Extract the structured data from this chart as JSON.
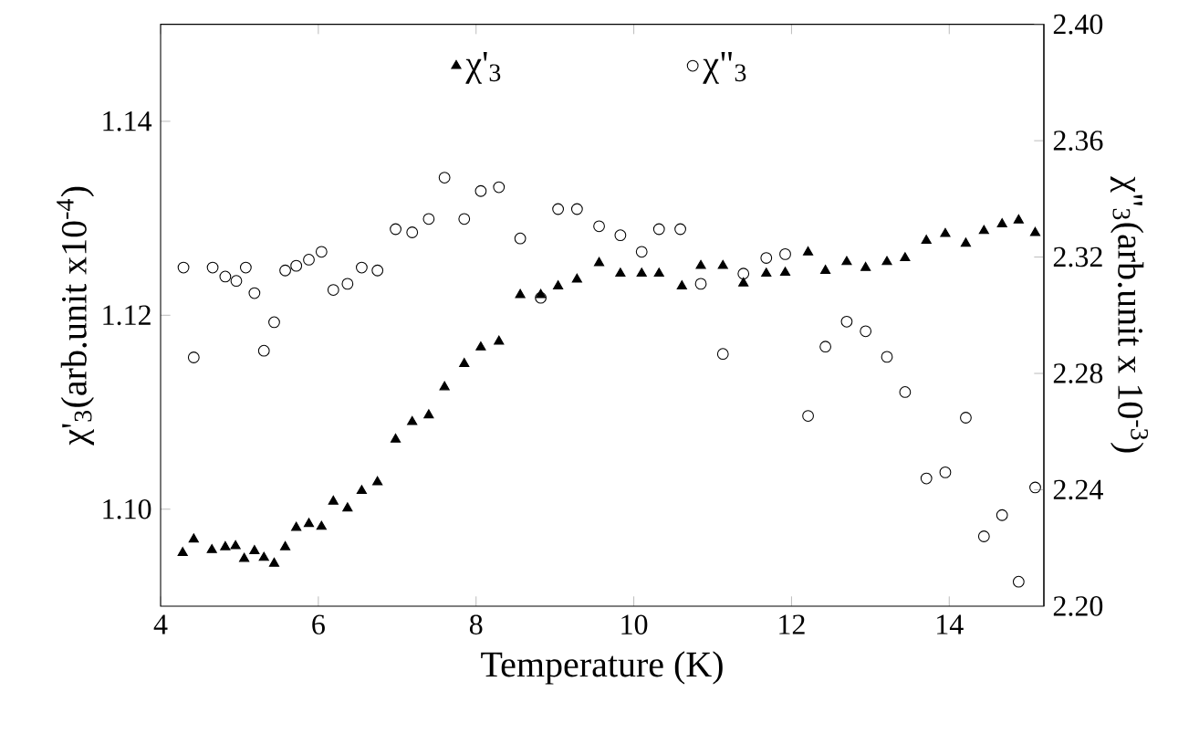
{
  "chart_data": {
    "type": "scatter",
    "xlabel": "Temperature (K)",
    "ylabel": "χ'$_{3}$(arb.unit x10$^{-4}$)",
    "y2label": "χ\"$_{3}$(arb.unit x 10$^{-3}$)",
    "xlim": [
      4,
      15.2
    ],
    "xticks": [
      4,
      6,
      8,
      10,
      12,
      14
    ],
    "ylim": [
      1.09,
      1.15
    ],
    "yticks": [
      {
        "value": 1.1,
        "label": "1.10"
      },
      1.12,
      1.14
    ],
    "y2lim": [
      2.2,
      2.4
    ],
    "y2ticks": [
      {
        "value": 2.2,
        "label": "2.20"
      },
      2.24,
      2.28,
      2.32,
      2.36,
      {
        "value": 2.4,
        "label": "2.40"
      }
    ],
    "legend": "top",
    "grid": false,
    "series": [
      {
        "name": "χ'$_{3}$",
        "color": "#000000",
        "marker": "triangle",
        "x": [
          4.28,
          4.42,
          4.65,
          4.82,
          4.95,
          5.06,
          5.19,
          5.31,
          5.44,
          5.58,
          5.72,
          5.88,
          6.04,
          6.19,
          6.37,
          6.55,
          6.75,
          6.98,
          7.19,
          7.4,
          7.6,
          7.85,
          8.06,
          8.29,
          8.56,
          8.82,
          9.04,
          9.28,
          9.56,
          9.83,
          10.1,
          10.32,
          10.61,
          10.85,
          11.13,
          11.39,
          11.68,
          11.92,
          12.21,
          12.43,
          12.7,
          12.94,
          13.21,
          13.44,
          13.71,
          13.95,
          14.21,
          14.44,
          14.67,
          14.88,
          15.09
        ],
        "values": [
          1.0955,
          1.0969,
          1.0958,
          1.0961,
          1.0962,
          1.0949,
          1.0957,
          1.095,
          1.0944,
          1.0961,
          1.0981,
          1.0985,
          1.0982,
          1.1008,
          1.1001,
          1.1019,
          1.1028,
          1.1072,
          1.109,
          1.1097,
          1.1126,
          1.115,
          1.1167,
          1.1173,
          1.1221,
          1.1221,
          1.123,
          1.1237,
          1.1254,
          1.1243,
          1.1243,
          1.1243,
          1.123,
          1.1251,
          1.1251,
          1.1233,
          1.1243,
          1.1244,
          1.1265,
          1.1246,
          1.1255,
          1.1249,
          1.1255,
          1.1259,
          1.1277,
          1.1284,
          1.1274,
          1.1287,
          1.1294,
          1.1298,
          1.1285
        ]
      },
      {
        "name": "χ\"$_{3}$",
        "color": "#000000",
        "marker": "circle",
        "axis": "y2",
        "x": [
          4.29,
          4.42,
          4.66,
          4.82,
          4.96,
          5.08,
          5.19,
          5.31,
          5.44,
          5.58,
          5.72,
          5.88,
          6.04,
          6.19,
          6.37,
          6.55,
          6.75,
          6.98,
          7.19,
          7.4,
          7.6,
          7.85,
          8.06,
          8.29,
          8.56,
          8.82,
          9.04,
          9.28,
          9.56,
          9.83,
          10.1,
          10.32,
          10.59,
          10.85,
          11.13,
          11.39,
          11.68,
          11.92,
          12.21,
          12.43,
          12.7,
          12.94,
          13.21,
          13.44,
          13.71,
          13.95,
          14.21,
          14.44,
          14.67,
          14.88,
          15.09
        ],
        "values": [
          2.3164,
          2.2855,
          2.3164,
          2.3133,
          2.3118,
          2.3164,
          2.3076,
          2.2878,
          2.2976,
          2.3154,
          2.317,
          2.3191,
          2.3218,
          2.3087,
          2.3108,
          2.3164,
          2.3154,
          2.3296,
          2.3285,
          2.3331,
          2.3473,
          2.3331,
          2.3427,
          2.344,
          2.3264,
          2.306,
          2.3365,
          2.3365,
          2.3306,
          2.3275,
          2.3218,
          2.3296,
          2.3296,
          2.3108,
          2.2867,
          2.3143,
          2.3197,
          2.321,
          2.2654,
          2.2892,
          2.2978,
          2.2945,
          2.2857,
          2.2736,
          2.2439,
          2.246,
          2.2648,
          2.224,
          2.2313,
          2.2084,
          2.2408
        ]
      }
    ]
  }
}
